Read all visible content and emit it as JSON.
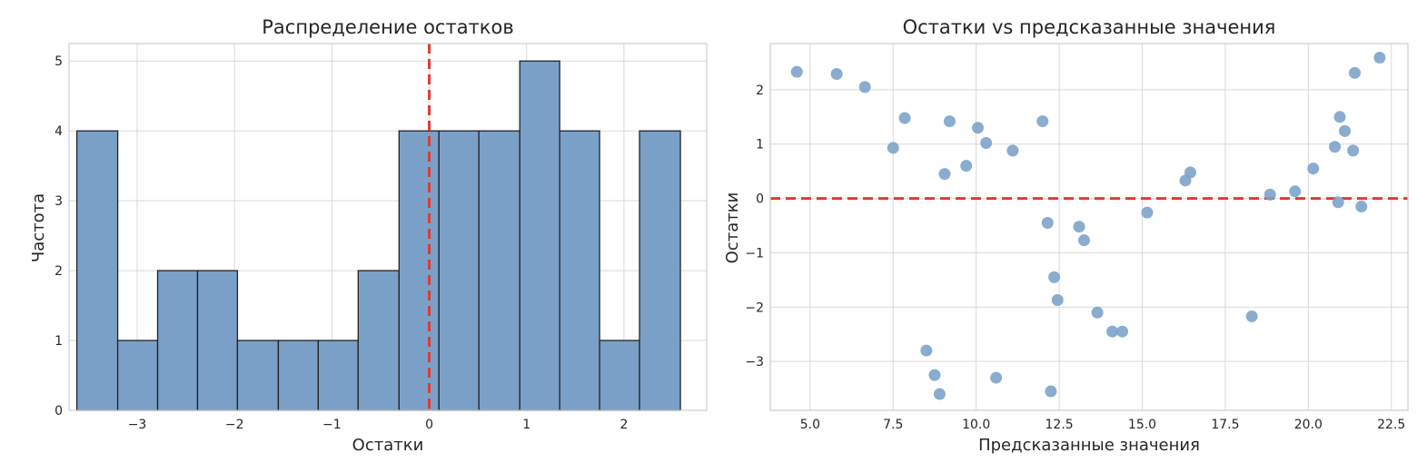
{
  "chart_data": [
    {
      "type": "bar",
      "title": "Распределение остатков",
      "xlabel": "Остатки",
      "ylabel": "Частота",
      "xlim": [
        -3.7,
        2.85
      ],
      "ylim": [
        0,
        5.25
      ],
      "xticks": [
        -3,
        -2,
        -1,
        0,
        1,
        2
      ],
      "yticks": [
        0,
        1,
        2,
        3,
        4,
        5
      ],
      "xtick_labels": [
        "−3",
        "−2",
        "−1",
        "0",
        "1",
        "2"
      ],
      "ytick_labels": [
        "0",
        "1",
        "2",
        "3",
        "4",
        "5"
      ],
      "bin_edges": [
        -3.62,
        -3.2,
        -2.79,
        -2.38,
        -1.97,
        -1.55,
        -1.14,
        -0.73,
        -0.31,
        0.1,
        0.51,
        0.93,
        1.34,
        1.75,
        2.16,
        2.58
      ],
      "counts": [
        4,
        1,
        2,
        2,
        1,
        1,
        1,
        2,
        4,
        4,
        4,
        5,
        4,
        1,
        4
      ],
      "bar_color": "#7aa0c8",
      "edge_color": "#222222",
      "reference_line": {
        "x": 0,
        "color": "#e03a2f",
        "style": "dashed"
      },
      "grid": true
    },
    {
      "type": "scatter",
      "title": "Остатки vs предсказанные значения",
      "xlabel": "Предсказанные значения",
      "ylabel": "Остатки",
      "xlim": [
        3.8,
        23.0
      ],
      "ylim": [
        -3.9,
        2.85
      ],
      "xticks": [
        5.0,
        7.5,
        10.0,
        12.5,
        15.0,
        17.5,
        20.0,
        22.5
      ],
      "yticks": [
        -3,
        -2,
        -1,
        0,
        1,
        2
      ],
      "xtick_labels": [
        "5.0",
        "7.5",
        "10.0",
        "12.5",
        "15.0",
        "17.5",
        "20.0",
        "22.5"
      ],
      "ytick_labels": [
        "−3",
        "−2",
        "−1",
        "0",
        "1",
        "2"
      ],
      "points": [
        [
          4.6,
          2.33
        ],
        [
          5.8,
          2.29
        ],
        [
          6.65,
          2.05
        ],
        [
          7.5,
          0.93
        ],
        [
          7.85,
          1.48
        ],
        [
          8.5,
          -2.8
        ],
        [
          8.75,
          -3.25
        ],
        [
          8.9,
          -3.6
        ],
        [
          9.05,
          0.45
        ],
        [
          9.2,
          1.42
        ],
        [
          9.7,
          0.6
        ],
        [
          10.05,
          1.3
        ],
        [
          10.3,
          1.02
        ],
        [
          10.6,
          -3.3
        ],
        [
          11.1,
          0.88
        ],
        [
          12.0,
          1.42
        ],
        [
          12.15,
          -0.45
        ],
        [
          12.25,
          -3.55
        ],
        [
          12.35,
          -1.45
        ],
        [
          12.45,
          -1.87
        ],
        [
          13.1,
          -0.52
        ],
        [
          13.25,
          -0.77
        ],
        [
          13.65,
          -2.1
        ],
        [
          14.1,
          -2.45
        ],
        [
          14.4,
          -2.45
        ],
        [
          15.15,
          -0.26
        ],
        [
          16.3,
          0.33
        ],
        [
          16.45,
          0.48
        ],
        [
          18.3,
          -2.17
        ],
        [
          18.85,
          0.07
        ],
        [
          19.6,
          0.13
        ],
        [
          20.15,
          0.55
        ],
        [
          20.8,
          0.95
        ],
        [
          20.9,
          -0.07
        ],
        [
          20.95,
          1.5
        ],
        [
          21.1,
          1.24
        ],
        [
          21.35,
          0.88
        ],
        [
          21.4,
          2.31
        ],
        [
          21.6,
          -0.15
        ],
        [
          22.15,
          2.59
        ]
      ],
      "point_color": "#7aa0c8",
      "reference_line": {
        "y": 0,
        "color": "#e03a2f",
        "style": "dashed"
      },
      "grid": true
    }
  ]
}
